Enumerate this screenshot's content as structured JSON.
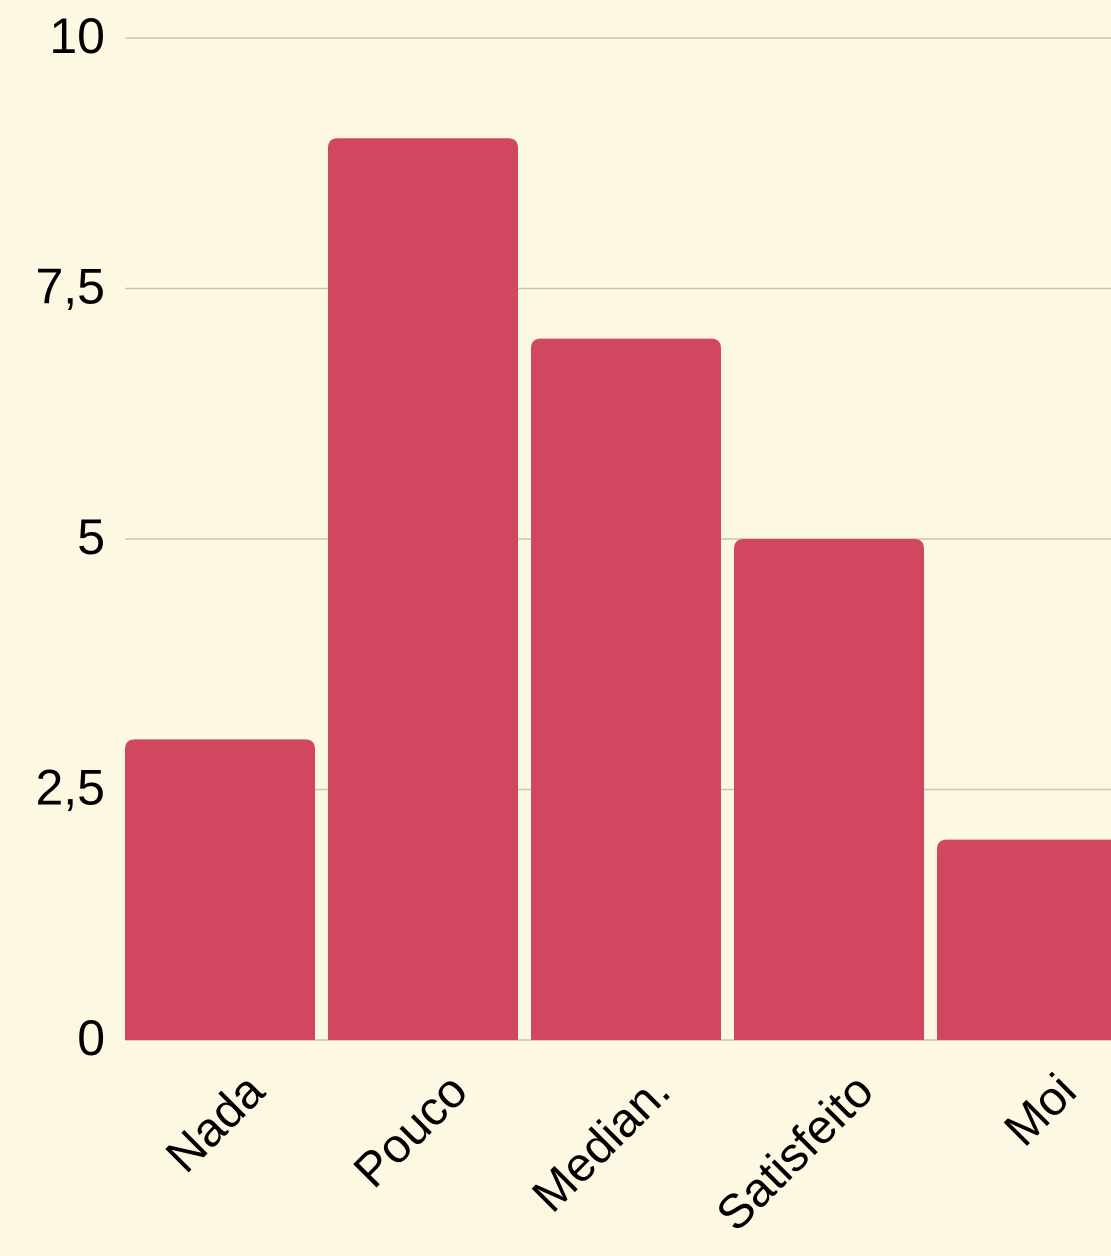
{
  "chart_data": {
    "type": "bar",
    "categories": [
      "Nada",
      "Pouco",
      "Median.",
      "Satisfeito",
      "Moi"
    ],
    "values": [
      3,
      9,
      7,
      5,
      2
    ],
    "color": "#d0475f",
    "ylim": [
      0,
      10
    ],
    "yticks": [
      0,
      {
        "value": 2.5,
        "label": "2,5"
      },
      5,
      {
        "value": 7.5,
        "label": "7,5"
      },
      10
    ],
    "grid": true
  }
}
